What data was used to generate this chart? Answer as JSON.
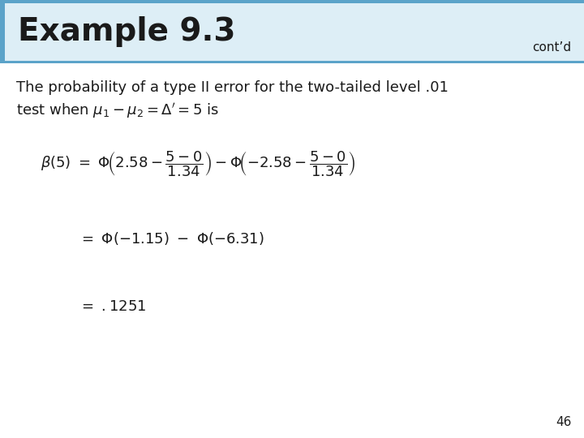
{
  "title": "Example 9.3",
  "contd": "cont’d",
  "title_bg_color": "#ddeef6",
  "title_border_color": "#5ba3c9",
  "title_text_color": "#1a1a1a",
  "body_bg_color": "#ffffff",
  "text_color": "#1a1a1a",
  "line1": "The probability of a type II error for the two-tailed level .01",
  "line2": "test when $\\mu_1 - \\mu_2 = \\Delta' = 5$ is",
  "eq1": "$\\beta(5) \\ = \\ \\Phi\\!\\left(2.58 - \\dfrac{5-0}{1.34}\\right) - \\Phi\\!\\left(-2.58 - \\dfrac{5-0}{1.34}\\right)$",
  "eq2": "$= \\ \\Phi(-1.15) \\ - \\ \\Phi(-6.31)$",
  "eq3": "$= \\ .1251$",
  "page_number": "46",
  "fontsize_title": 28,
  "fontsize_contd": 11,
  "fontsize_body": 13,
  "fontsize_eq": 13,
  "fontsize_page": 11
}
